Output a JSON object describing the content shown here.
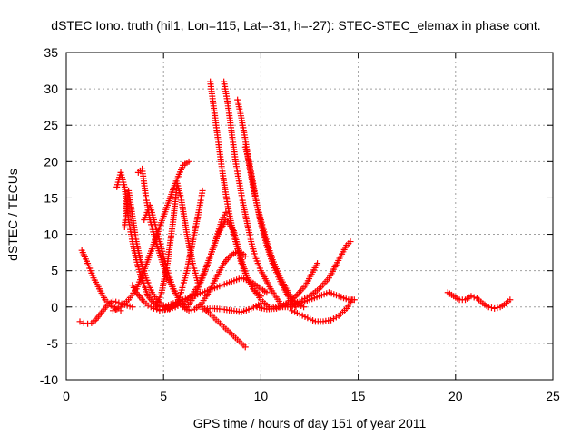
{
  "chart_data": {
    "type": "scatter",
    "title": "dSTEC Iono. truth (hil1, Lon=115, Lat=-31, h=-27): STEC-STEC_elemax in phase cont.",
    "xlabel": "GPS time / hours of day 151 of year 2011",
    "ylabel": "dSTEC  / TECUs",
    "xlim": [
      0,
      25
    ],
    "ylim": [
      -10,
      35
    ],
    "x_ticks": [
      0,
      5,
      10,
      15,
      20,
      25
    ],
    "y_ticks": [
      -10,
      -5,
      0,
      5,
      10,
      15,
      20,
      25,
      30,
      35
    ],
    "x_tick_labels": [
      "0",
      "5",
      "10",
      "15",
      "20",
      "25"
    ],
    "y_tick_labels": [
      "-10",
      "-5",
      "0",
      "5",
      "10",
      "15",
      "20",
      "25",
      "30",
      "35"
    ],
    "grid": true,
    "marker": "+",
    "color": "#ff0000",
    "series": [
      {
        "x": [
          0.7,
          0.9,
          1.1,
          1.3,
          1.5,
          1.8,
          2.1,
          2.4,
          2.7,
          3.0,
          3.4
        ],
        "y": [
          -2.0,
          -2.2,
          -2.3,
          -2.2,
          -1.8,
          -0.8,
          0.2,
          0.8,
          0.6,
          0.3,
          0.0
        ]
      },
      {
        "x": [
          0.8,
          1.1,
          1.4,
          1.7,
          2.0,
          2.3,
          2.6,
          2.8
        ],
        "y": [
          7.8,
          6.0,
          4.0,
          2.5,
          1.0,
          0.2,
          -0.3,
          -0.5
        ]
      },
      {
        "x": [
          2.6,
          2.8,
          3.0,
          3.2,
          3.4,
          3.6,
          3.8,
          4.0,
          4.2,
          4.5,
          4.8
        ],
        "y": [
          16.5,
          18.5,
          16.5,
          12.0,
          9.0,
          6.5,
          4.5,
          3.0,
          1.5,
          0.5,
          0.0
        ]
      },
      {
        "x": [
          3.0,
          3.2,
          3.4,
          3.6,
          3.8,
          4.1,
          4.4,
          4.7,
          5.0,
          5.3
        ],
        "y": [
          11.0,
          16.0,
          12.5,
          9.0,
          6.5,
          4.0,
          2.0,
          0.8,
          0.2,
          -0.3
        ]
      },
      {
        "x": [
          3.4,
          3.6,
          3.9,
          4.2,
          4.5,
          4.8,
          5.1,
          5.4,
          5.8
        ],
        "y": [
          3.0,
          2.0,
          1.0,
          0.2,
          -0.2,
          -0.4,
          -0.3,
          0.0,
          0.5
        ]
      },
      {
        "x": [
          3.7,
          3.9,
          4.1,
          4.3,
          4.6,
          4.9,
          5.2,
          5.5,
          5.8,
          6.1
        ],
        "y": [
          18.5,
          19.0,
          15.0,
          12.0,
          9.0,
          6.5,
          4.0,
          2.5,
          1.0,
          0.0
        ]
      },
      {
        "x": [
          4.0,
          4.3,
          4.6,
          4.9,
          5.2,
          5.5,
          5.8,
          6.1
        ],
        "y": [
          12.0,
          14.0,
          11.0,
          8.0,
          5.0,
          2.5,
          1.0,
          0.0
        ]
      },
      {
        "x": [
          2.4,
          2.8,
          3.2,
          3.6,
          4.0,
          4.4,
          4.8,
          5.2,
          5.6,
          6.0,
          6.3
        ],
        "y": [
          -0.5,
          0.0,
          1.0,
          2.5,
          5.0,
          8.0,
          11.0,
          14.0,
          17.0,
          19.5,
          20.0
        ]
      },
      {
        "x": [
          4.6,
          4.9,
          5.2,
          5.5,
          5.7,
          5.9,
          6.2,
          6.5,
          6.8
        ],
        "y": [
          0.0,
          2.0,
          6.0,
          12.0,
          17.0,
          15.0,
          10.0,
          6.0,
          3.0
        ]
      },
      {
        "x": [
          5.6,
          5.9,
          6.2,
          6.5,
          6.8,
          7.0
        ],
        "y": [
          0.0,
          2.0,
          5.0,
          9.0,
          13.0,
          16.0
        ]
      },
      {
        "x": [
          6.0,
          6.3,
          6.6,
          6.9,
          7.2,
          7.5,
          7.8,
          8.1,
          8.4,
          8.7,
          9.0,
          9.2
        ],
        "y": [
          0.0,
          -0.5,
          -0.3,
          0.3,
          1.5,
          3.0,
          4.5,
          6.0,
          7.0,
          7.5,
          7.5,
          7.0
        ]
      },
      {
        "x": [
          4.8,
          5.2,
          5.6,
          6.0,
          6.4,
          6.8,
          7.2,
          7.6,
          8.0,
          8.2
        ],
        "y": [
          -0.5,
          -0.3,
          0.0,
          0.5,
          1.5,
          3.0,
          5.5,
          8.5,
          12.0,
          13.0
        ]
      },
      {
        "x": [
          5.0,
          5.5,
          6.0,
          6.5,
          7.0,
          7.5,
          8.0,
          8.5,
          9.0,
          9.5,
          10.0,
          10.3
        ],
        "y": [
          0.0,
          0.5,
          1.0,
          1.5,
          2.0,
          2.5,
          3.0,
          3.5,
          4.0,
          3.5,
          2.5,
          2.0
        ]
      },
      {
        "x": [
          7.4,
          7.6,
          7.8,
          8.0,
          8.2,
          8.4,
          8.6,
          8.8,
          9.0,
          9.3,
          9.6,
          10.0,
          10.4
        ],
        "y": [
          31.0,
          27.0,
          23.0,
          19.0,
          15.5,
          12.5,
          10.0,
          8.0,
          6.0,
          4.0,
          2.5,
          1.0,
          0.0
        ]
      },
      {
        "x": [
          8.1,
          8.3,
          8.5,
          8.7,
          8.9,
          9.1,
          9.3,
          9.5,
          9.7,
          10.0,
          10.5,
          11.0
        ],
        "y": [
          31.0,
          28.0,
          24.0,
          20.0,
          17.0,
          14.0,
          11.5,
          9.0,
          7.0,
          5.0,
          2.5,
          0.5
        ]
      },
      {
        "x": [
          8.8,
          9.0,
          9.2,
          9.4,
          9.6,
          9.8,
          10.0,
          10.3,
          10.6,
          11.0,
          11.4,
          11.8
        ],
        "y": [
          28.5,
          26.0,
          23.0,
          19.5,
          16.5,
          14.0,
          11.5,
          8.5,
          6.0,
          3.5,
          1.5,
          0.0
        ]
      },
      {
        "x": [
          9.2,
          9.4,
          9.6,
          9.8,
          10.0,
          10.3,
          10.6,
          11.0,
          11.4,
          11.8,
          12.2
        ],
        "y": [
          22.0,
          20.0,
          17.0,
          14.0,
          12.0,
          9.0,
          6.5,
          4.0,
          2.0,
          0.5,
          0.0
        ]
      },
      {
        "x": [
          6.2,
          6.6,
          7.0,
          7.4,
          7.8,
          8.2,
          8.6,
          9.0,
          9.3,
          9.6,
          10.0
        ],
        "y": [
          0.0,
          1.5,
          4.0,
          7.0,
          10.0,
          12.0,
          10.5,
          6.5,
          4.0,
          2.5,
          1.5
        ]
      },
      {
        "x": [
          7.0,
          7.4,
          7.8,
          8.2,
          8.6,
          9.0,
          9.2
        ],
        "y": [
          0.0,
          -1.0,
          -2.0,
          -3.0,
          -4.0,
          -5.0,
          -5.5
        ]
      },
      {
        "x": [
          7.0,
          7.5,
          8.0,
          8.5,
          9.0,
          9.5,
          10.0
        ],
        "y": [
          -0.3,
          -0.2,
          -0.3,
          -0.5,
          -0.7,
          -0.2,
          0.5
        ]
      },
      {
        "x": [
          9.8,
          10.3,
          10.8,
          11.3,
          11.8,
          12.3,
          12.6,
          12.9
        ],
        "y": [
          0.0,
          -0.3,
          -0.2,
          0.5,
          1.5,
          3.0,
          4.5,
          6.0
        ]
      },
      {
        "x": [
          10.4,
          11.0,
          11.5,
          12.0,
          12.5,
          13.0,
          13.5,
          13.8,
          14.1,
          14.4,
          14.6
        ],
        "y": [
          0.0,
          0.0,
          0.3,
          0.8,
          1.5,
          2.5,
          4.0,
          5.5,
          7.0,
          8.5,
          9.0
        ]
      },
      {
        "x": [
          11.0,
          11.5,
          12.0,
          12.5,
          13.0,
          13.5,
          14.0,
          14.5,
          14.8
        ],
        "y": [
          0.0,
          0.0,
          0.5,
          1.0,
          1.5,
          2.0,
          1.5,
          1.0,
          1.0
        ]
      },
      {
        "x": [
          11.6,
          12.0,
          12.4,
          12.8,
          13.2,
          13.6,
          14.0,
          14.4,
          14.7
        ],
        "y": [
          -0.5,
          -1.0,
          -1.5,
          -2.0,
          -2.0,
          -1.8,
          -1.2,
          -0.2,
          1.0
        ]
      },
      {
        "x": [
          19.6,
          19.9,
          20.2,
          20.5,
          20.8,
          21.1,
          21.4,
          21.7,
          22.0,
          22.3,
          22.6,
          22.8
        ],
        "y": [
          2.0,
          1.5,
          1.0,
          1.0,
          1.5,
          1.2,
          0.5,
          0.0,
          -0.2,
          0.0,
          0.5,
          1.0
        ]
      }
    ]
  }
}
